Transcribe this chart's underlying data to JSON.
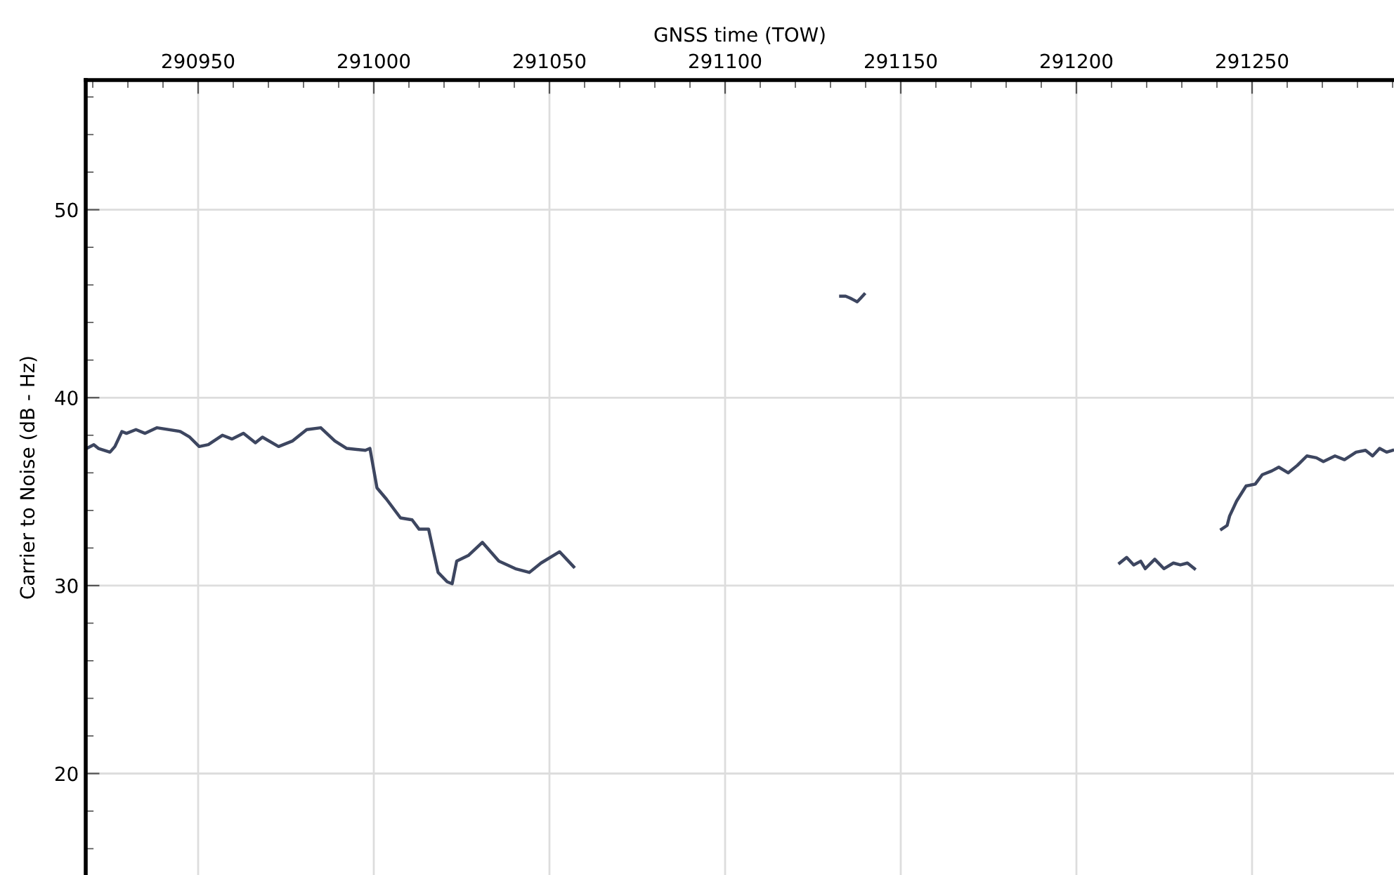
{
  "chart_data": {
    "type": "line",
    "xlabel": "GNSS time (TOW)",
    "ylabel": "Carrier to Noise (dB - Hz)",
    "xlim": [
      290918,
      291290.4
    ],
    "ylim": [
      14.6,
      56.9
    ],
    "xticks": [
      290950,
      291000,
      291050,
      291100,
      291150,
      291200,
      291250
    ],
    "yticks": [
      20,
      30,
      40,
      50
    ],
    "grid": true,
    "marker": "none",
    "line_style": "solid",
    "series": [
      {
        "color": "#3d4660",
        "x": [
          290918.3,
          290920.3,
          290921.6,
          290924.9,
          290926.3,
          290928.3,
          290929.6,
          290932.3,
          290934.9,
          290938.3,
          290944.9,
          290947.6,
          290950.3,
          290952.9,
          290956.9,
          290959.6,
          290962.9,
          290966.3,
          290968.3,
          290972.9,
          290976.9,
          290980.9,
          290984.9,
          290988.9,
          290992.3,
          290997.6,
          290998.9,
          291000.9,
          291003.6,
          291007.6,
          291010.9,
          291012.9,
          291015.6,
          291018.3,
          291020.9,
          291022.3,
          291023.6,
          291026.9,
          291030.9,
          291035.6,
          291040.3,
          291044.3,
          291047.6,
          291052.9,
          291056.9,
          291095,
          291132.9,
          291134.3,
          291135.6,
          291136.6,
          291137.6,
          291138.6,
          291139.6,
          291180,
          291212.3,
          291214.3,
          291216.3,
          291218.3,
          291219.6,
          291222.3,
          291224.9,
          291227.6,
          291229.6,
          291231.6,
          291233.6,
          291238,
          291241.3,
          291242.9,
          291243.6,
          291245.6,
          291248.3,
          291250.9,
          291252.9,
          291255.6,
          291257.6,
          291260.3,
          291262.9,
          291265.6,
          291268.3,
          291270.3,
          291273.6,
          291276.3,
          291279.6,
          291282.3,
          291284.3,
          291286.3,
          291288.3,
          291290
        ],
        "values": [
          37.3,
          37.5,
          37.3,
          37.1,
          37.4,
          38.2,
          38.1,
          38.3,
          38.1,
          38.4,
          38.2,
          37.9,
          37.4,
          37.5,
          38.0,
          37.8,
          38.1,
          37.6,
          37.9,
          37.4,
          37.7,
          38.3,
          38.4,
          37.7,
          37.3,
          37.2,
          37.3,
          35.2,
          34.6,
          33.6,
          33.5,
          33.0,
          33.0,
          30.7,
          30.2,
          30.1,
          31.3,
          31.6,
          32.3,
          31.3,
          30.9,
          30.7,
          31.2,
          31.8,
          31.0,
          null,
          45.4,
          45.4,
          45.3,
          45.2,
          45.1,
          45.3,
          45.5,
          null,
          31.2,
          31.5,
          31.1,
          31.3,
          30.9,
          31.4,
          30.9,
          31.2,
          31.1,
          31.2,
          30.9,
          null,
          33.0,
          33.2,
          33.7,
          34.5,
          35.3,
          35.4,
          35.9,
          36.1,
          36.3,
          36.0,
          36.4,
          36.9,
          36.8,
          36.6,
          36.9,
          36.7,
          37.1,
          37.2,
          36.9,
          37.3,
          37.1,
          37.2
        ]
      }
    ]
  }
}
